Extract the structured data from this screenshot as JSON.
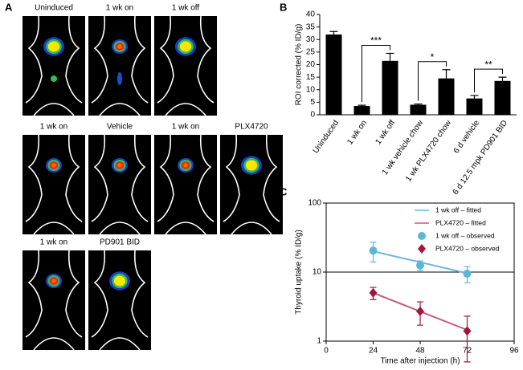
{
  "panel_a": {
    "label": "A",
    "images": [
      "Uninduced",
      "1 wk on",
      "1 wk off",
      "1 wk on",
      "Vehicle",
      "1 wk on",
      "PLX4720",
      "1 wk on",
      "PD901 BID"
    ]
  },
  "chart_data": [
    {
      "type": "bar",
      "panel_label": "B",
      "y_label": "ROI corrected (% ID/g)",
      "categories": [
        "Uninduced",
        "1 wk on",
        "1 wk off",
        "1 wk vehicle chow",
        "1 wk PLX4720 chow",
        "6 d vehicle",
        "6 d 12.5 mpk PD901 BID"
      ],
      "values": [
        32,
        3.5,
        21.5,
        4,
        14.5,
        6.5,
        13.5
      ],
      "errors": [
        1.2,
        0.3,
        3,
        0.3,
        3.5,
        1.2,
        1.5
      ],
      "color": "#000000",
      "ylim": [
        0,
        40
      ],
      "yticks": [
        0,
        5,
        10,
        15,
        20,
        25,
        30,
        35,
        40
      ],
      "annotations": [
        "***",
        "*",
        "**"
      ]
    },
    {
      "type": "line",
      "panel_label": "C",
      "x_label": "Time after injection (h)",
      "y_label": "Thyroid uptake (% ID/g)",
      "log_y": true,
      "grid": true,
      "x": [
        24,
        48,
        72
      ],
      "xlim": [
        0,
        96
      ],
      "xticks": [
        0,
        24,
        48,
        72,
        96
      ],
      "ylim": [
        1,
        100
      ],
      "yticks": [
        1,
        10,
        100
      ],
      "series": [
        {
          "name": "1 wk off – fitted",
          "color": "#6cb8de",
          "values": [
            20,
            13.9,
            9.6
          ]
        },
        {
          "name": "PLX4720 – fitted",
          "color": "#c85a7c",
          "values": [
            5,
            2.69,
            1.45
          ]
        },
        {
          "name": "1 wk off – observed",
          "color": "#5bb8d4",
          "marker": "circle",
          "values": [
            20.5,
            12.5,
            9.5
          ],
          "errors": [
            6.5,
            2,
            2.5
          ]
        },
        {
          "name": "PLX4720 – observed",
          "color": "#a3163a",
          "marker": "diamond",
          "values": [
            5,
            2.7,
            1.4
          ],
          "errors": [
            1,
            1,
            0.9
          ]
        }
      ]
    }
  ]
}
